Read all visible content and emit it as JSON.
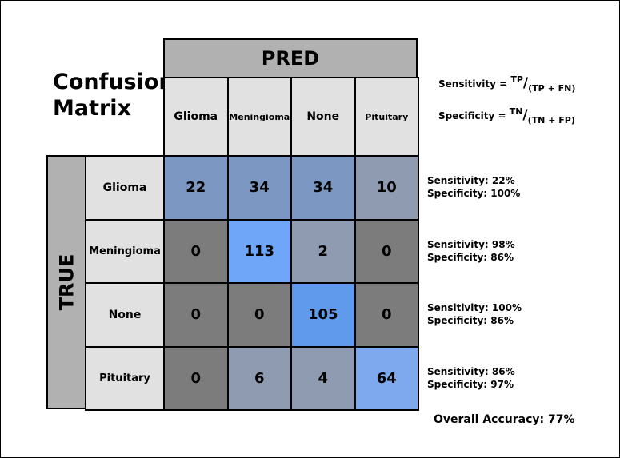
{
  "title_line1": "Confusion",
  "title_line2": "Matrix",
  "formulas": {
    "sensitivity": {
      "label": "Sensitivity =",
      "num": "TP",
      "slash": "/",
      "den": "(TP + FN)"
    },
    "specificity": {
      "label": "Specificity =",
      "num": "TN",
      "slash": "/",
      "den": "(TN + FP)"
    }
  },
  "overall_accuracy": "Overall Accuracy: 77%",
  "colors": {
    "diag_strong": "#6fa6f7",
    "blue_mid": "#7c97c1",
    "gray_light": "#8e9bb0",
    "gray_dark": "#7c7c7c"
  },
  "chart_data": {
    "type": "heatmap",
    "title": "Confusion Matrix",
    "x_axis_title": "PRED",
    "y_axis_title": "TRUE",
    "pred_labels": [
      "Glioma",
      "Meningioma",
      "None",
      "Pituitary"
    ],
    "true_labels": [
      "Glioma",
      "Meningioma",
      "None",
      "Pituitary"
    ],
    "matrix": [
      [
        22,
        34,
        34,
        10
      ],
      [
        0,
        113,
        2,
        0
      ],
      [
        0,
        0,
        105,
        0
      ],
      [
        0,
        6,
        4,
        64
      ]
    ],
    "cell_colors": [
      [
        "#7c97c1",
        "#7c97c1",
        "#7c97c1",
        "#8e9bb0"
      ],
      [
        "#7c7c7c",
        "#6fa6f7",
        "#8e9bb0",
        "#7c7c7c"
      ],
      [
        "#7c7c7c",
        "#7c7c7c",
        "#5f9aec",
        "#7c7c7c"
      ],
      [
        "#7c7c7c",
        "#8e9bb0",
        "#8e9bb0",
        "#7ea9ef"
      ]
    ],
    "row_metrics": [
      {
        "sensitivity": "Sensitivity: 22%",
        "specificity": "Specificity: 100%"
      },
      {
        "sensitivity": "Sensitivity: 98%",
        "specificity": "Specificity: 86%"
      },
      {
        "sensitivity": "Sensitivity: 100%",
        "specificity": "Specificity: 86%"
      },
      {
        "sensitivity": "Sensitivity: 86%",
        "specificity": "Specificity: 97%"
      }
    ]
  }
}
